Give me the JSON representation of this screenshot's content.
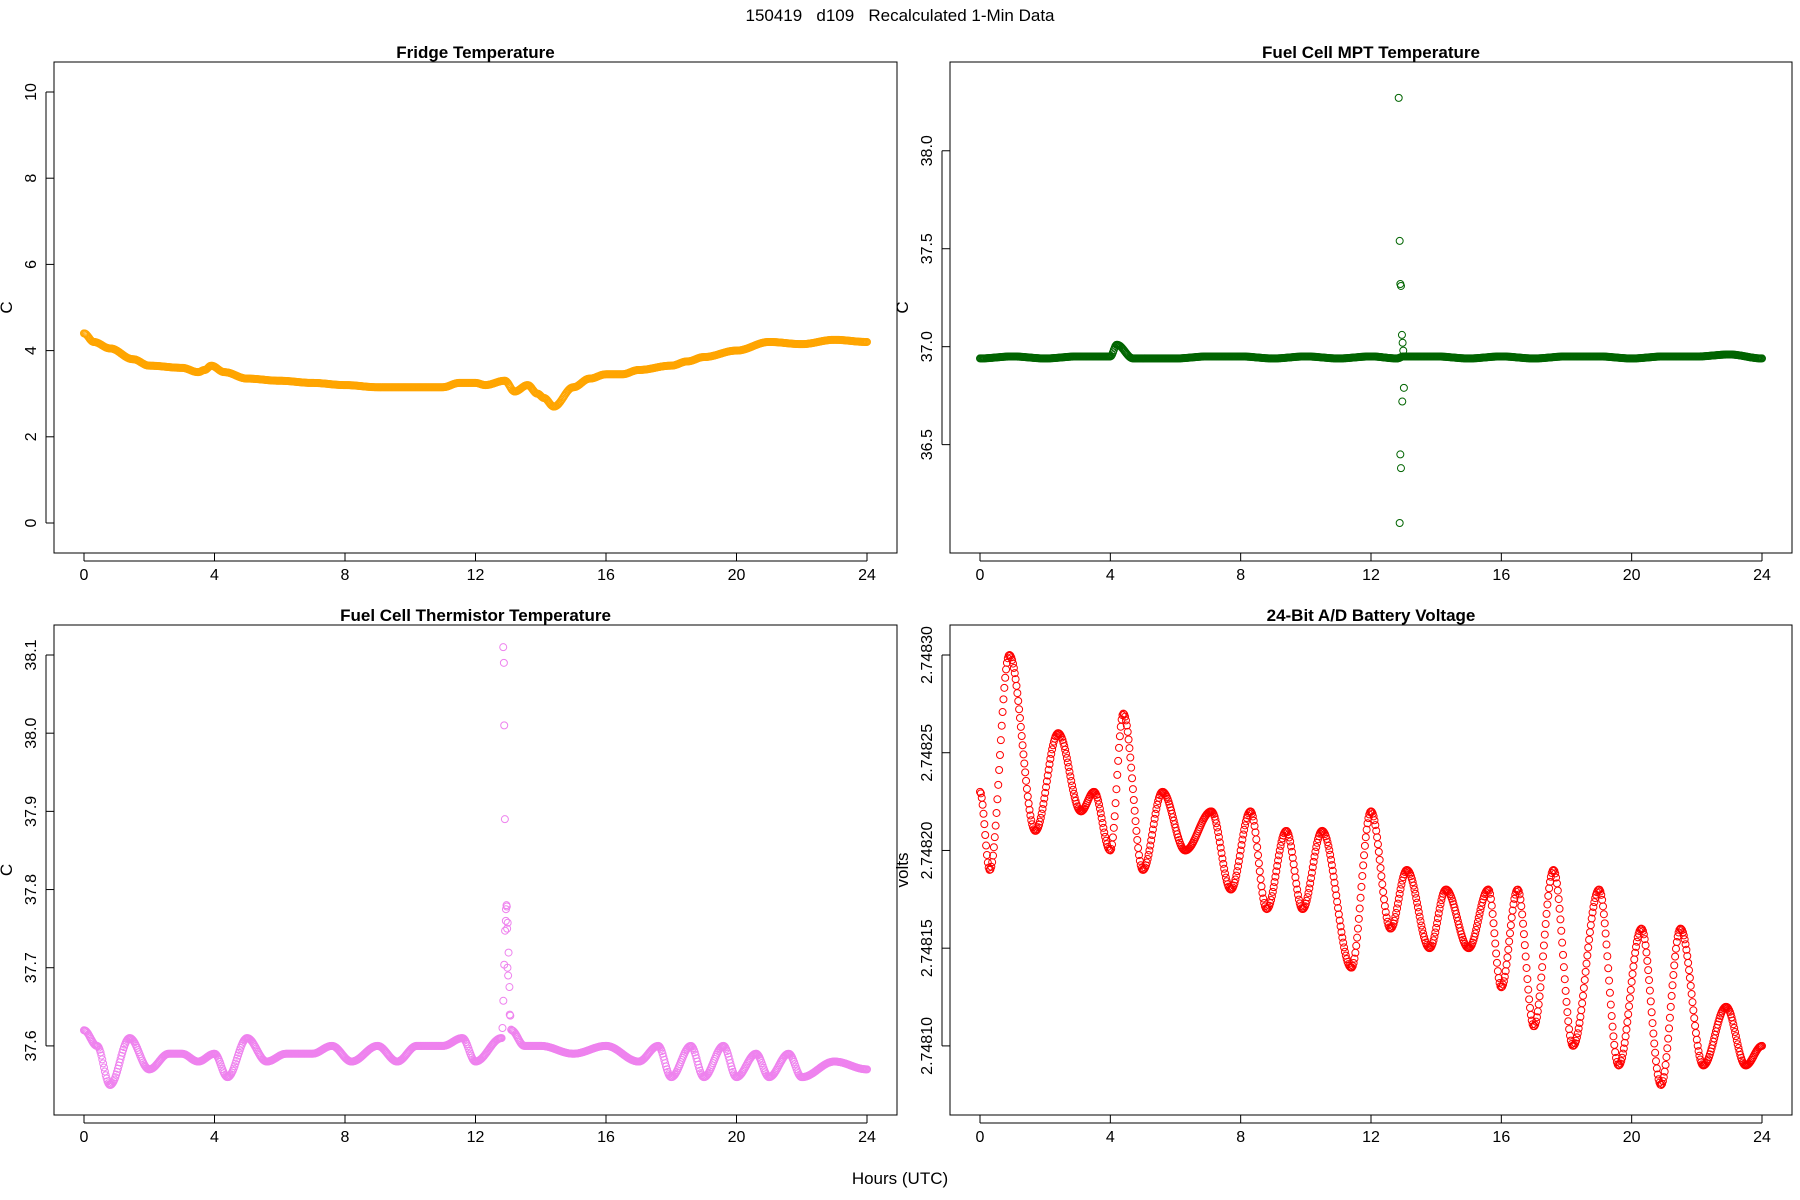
{
  "title": "150419   d109   Recalculated 1-Min Data",
  "xlabel": "Hours (UTC)",
  "chart_data": [
    {
      "type": "line",
      "title": "Fridge Temperature",
      "ylabel": "C",
      "color": "#FFA500",
      "xlim": [
        0,
        24
      ],
      "ylim": [
        0,
        10
      ],
      "xticks": [
        "0",
        "4",
        "8",
        "12",
        "16",
        "20",
        "24"
      ],
      "yticks": [
        "0",
        "2",
        "4",
        "6",
        "8",
        "10"
      ],
      "x": [
        0,
        0.3,
        0.8,
        1.5,
        2,
        3,
        3.5,
        3.7,
        3.9,
        4.3,
        5,
        6,
        7,
        8,
        9,
        10,
        11,
        11.5,
        12,
        12.3,
        12.9,
        13.2,
        13.6,
        13.9,
        14.1,
        14.4,
        15,
        15.5,
        16,
        16.5,
        17,
        18,
        18.5,
        19,
        20,
        21,
        22,
        23,
        24
      ],
      "y": [
        4.4,
        4.2,
        4.05,
        3.8,
        3.65,
        3.6,
        3.5,
        3.55,
        3.65,
        3.5,
        3.35,
        3.3,
        3.25,
        3.2,
        3.15,
        3.15,
        3.15,
        3.25,
        3.25,
        3.2,
        3.3,
        3.05,
        3.2,
        3.0,
        2.9,
        2.7,
        3.15,
        3.35,
        3.45,
        3.45,
        3.55,
        3.65,
        3.75,
        3.85,
        4.0,
        4.2,
        4.15,
        4.25,
        4.2
      ]
    },
    {
      "type": "scatter",
      "title": "Fuel Cell MPT Temperature",
      "ylabel": "C",
      "color": "#006400",
      "xlim": [
        0,
        24
      ],
      "ylim": [
        36.1,
        38.3
      ],
      "xticks": [
        "0",
        "4",
        "8",
        "12",
        "16",
        "20",
        "24"
      ],
      "yticks": [
        "36.5",
        "37.0",
        "37.5",
        "38.0"
      ],
      "x": [
        0,
        1,
        2,
        3,
        4,
        4.2,
        4.7,
        5,
        6,
        7,
        8,
        9,
        10,
        11,
        12,
        12.8,
        13,
        14,
        15,
        16,
        17,
        18,
        19,
        20,
        21,
        22,
        23,
        24
      ],
      "y": [
        36.94,
        36.95,
        36.94,
        36.95,
        36.95,
        37.01,
        36.94,
        36.94,
        36.94,
        36.95,
        36.95,
        36.94,
        36.95,
        36.94,
        36.95,
        36.94,
        36.95,
        36.95,
        36.94,
        36.95,
        36.94,
        36.95,
        36.95,
        36.94,
        36.95,
        36.95,
        36.96,
        36.94
      ],
      "outliers": [
        {
          "x": 12.85,
          "y": 38.27
        },
        {
          "x": 12.88,
          "y": 37.54
        },
        {
          "x": 12.9,
          "y": 37.32
        },
        {
          "x": 12.92,
          "y": 37.31
        },
        {
          "x": 12.95,
          "y": 37.06
        },
        {
          "x": 12.97,
          "y": 37.02
        },
        {
          "x": 12.99,
          "y": 36.98
        },
        {
          "x": 13.01,
          "y": 36.79
        },
        {
          "x": 12.96,
          "y": 36.72
        },
        {
          "x": 12.9,
          "y": 36.45
        },
        {
          "x": 12.92,
          "y": 36.38
        },
        {
          "x": 12.88,
          "y": 36.1
        }
      ]
    },
    {
      "type": "scatter",
      "title": "Fuel Cell Thermistor Temperature",
      "ylabel": "C",
      "color": "#EE82EE",
      "xlim": [
        0,
        24
      ],
      "ylim": [
        37.55,
        38.1
      ],
      "xticks": [
        "0",
        "4",
        "8",
        "12",
        "16",
        "20",
        "24"
      ],
      "yticks": [
        "37.6",
        "37.7",
        "37.8",
        "37.9",
        "38.0",
        "38.1"
      ],
      "x": [
        0,
        0.4,
        0.8,
        1.4,
        2,
        2.6,
        3,
        3.5,
        4,
        4.4,
        5,
        5.6,
        6.2,
        7,
        7.6,
        8.2,
        9,
        9.6,
        10.2,
        11,
        11.6,
        12,
        12.8,
        12.95,
        13.1,
        13.5,
        14,
        15,
        16,
        17,
        17.6,
        18,
        18.6,
        19,
        19.6,
        20,
        20.6,
        21,
        21.6,
        22,
        23,
        24
      ],
      "y": [
        37.62,
        37.6,
        37.55,
        37.61,
        37.57,
        37.59,
        37.59,
        37.58,
        37.59,
        37.56,
        37.61,
        37.58,
        37.59,
        37.59,
        37.6,
        37.58,
        37.6,
        37.58,
        37.6,
        37.6,
        37.61,
        37.58,
        37.61,
        37.78,
        37.62,
        37.6,
        37.6,
        37.59,
        37.6,
        37.58,
        37.6,
        37.56,
        37.6,
        37.56,
        37.6,
        37.56,
        37.59,
        37.56,
        37.59,
        37.56,
        37.58,
        37.57
      ],
      "outliers": [
        {
          "x": 12.85,
          "y": 38.11
        },
        {
          "x": 12.87,
          "y": 38.09
        },
        {
          "x": 12.88,
          "y": 38.01
        },
        {
          "x": 12.9,
          "y": 37.89
        },
        {
          "x": 12.95,
          "y": 37.78
        },
        {
          "x": 12.93,
          "y": 37.76
        },
        {
          "x": 12.97,
          "y": 37.75
        },
        {
          "x": 12.98,
          "y": 37.7
        },
        {
          "x": 13.0,
          "y": 37.69
        },
        {
          "x": 13.05,
          "y": 37.64
        }
      ]
    },
    {
      "type": "scatter",
      "title": "24-Bit A/D Battery Voltage",
      "ylabel": "volts",
      "color": "#FF0000",
      "xlim": [
        0,
        24
      ],
      "ylim": [
        2.74808,
        2.7483
      ],
      "xticks": [
        "0",
        "4",
        "8",
        "12",
        "16",
        "20",
        "24"
      ],
      "yticks": [
        "2.74810",
        "2.74815",
        "2.74820",
        "2.74825",
        "2.74830"
      ],
      "x": [
        0,
        0.3,
        0.9,
        1.7,
        2.4,
        3.1,
        3.5,
        4.0,
        4.4,
        5.0,
        5.6,
        6.3,
        7.1,
        7.7,
        8.3,
        8.8,
        9.4,
        9.9,
        10.5,
        11.4,
        12.0,
        12.6,
        13.1,
        13.8,
        14.3,
        15.0,
        15.6,
        16.0,
        16.5,
        17.0,
        17.6,
        18.2,
        19.0,
        19.6,
        20.3,
        20.9,
        21.5,
        22.2,
        22.9,
        23.5,
        24
      ],
      "y": [
        2.74823,
        2.74819,
        2.7483,
        2.74821,
        2.74826,
        2.74822,
        2.74823,
        2.7482,
        2.74827,
        2.74819,
        2.74823,
        2.7482,
        2.74822,
        2.74818,
        2.74822,
        2.74817,
        2.74821,
        2.74817,
        2.74821,
        2.74814,
        2.74822,
        2.74816,
        2.74819,
        2.74815,
        2.74818,
        2.74815,
        2.74818,
        2.74813,
        2.74818,
        2.74811,
        2.74819,
        2.7481,
        2.74818,
        2.74809,
        2.74816,
        2.74808,
        2.74816,
        2.74809,
        2.74812,
        2.74809,
        2.7481
      ]
    }
  ]
}
